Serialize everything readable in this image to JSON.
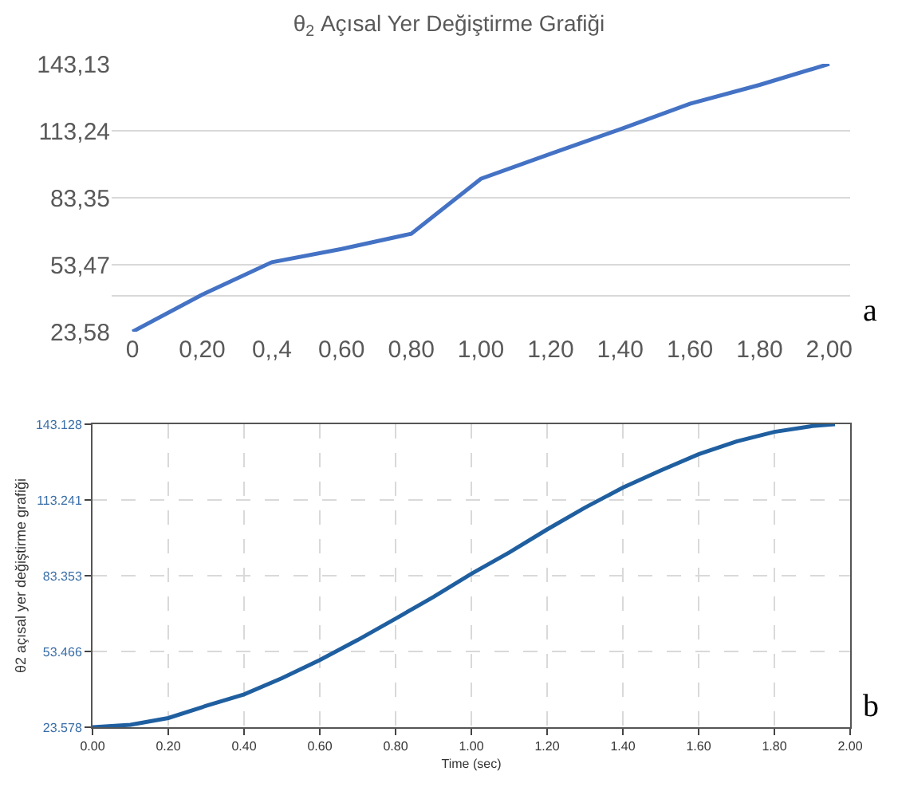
{
  "chart_data": [
    {
      "type": "line",
      "title": "θ$_{2}$ Açısal Yer Değiştirme Grafiği",
      "categories": [
        "0",
        "0,20",
        "0,,4",
        "0,60",
        "0,80",
        "1,00",
        "1,20",
        "1,40",
        "1,60",
        "1,80",
        "2,00"
      ],
      "series": [
        {
          "color": "#4472c4",
          "values": [
            23.6,
            40.1,
            54.6,
            60.5,
            67.3,
            91.8,
            103.0,
            113.9,
            125.3,
            133.7,
            143.1
          ]
        }
      ],
      "ylim": [
        23.58,
        143.13
      ],
      "yticks": [
        {
          "value": 23.58,
          "label": "23,58"
        },
        {
          "value": 39.6,
          "label": null
        },
        {
          "value": 53.47,
          "label": "53,47"
        },
        {
          "value": 83.35,
          "label": "83,35"
        },
        {
          "value": 113.24,
          "label": "113,24"
        },
        {
          "value": 143.13,
          "label": "143,13"
        }
      ],
      "grid": "y",
      "marker": "none",
      "line_style": "solid",
      "annotations": [
        "a"
      ]
    },
    {
      "type": "line",
      "xlabel": "Time (sec)",
      "ylabel": "θ2 açısal yer değiştirme grafiği",
      "series": [
        {
          "color": "#1f5fa0",
          "x": [
            0,
            0.1,
            0.2,
            0.3,
            0.4,
            0.5,
            0.6,
            0.7,
            0.8,
            0.9,
            1.0,
            1.1,
            1.2,
            1.3,
            1.4,
            1.5,
            1.6,
            1.7,
            1.8,
            1.9,
            1.96
          ],
          "values": [
            23.6,
            24.5,
            27.2,
            32,
            36.5,
            42.9,
            50.1,
            58.0,
            66.4,
            75.0,
            84.1,
            92.5,
            101.6,
            110.2,
            118.1,
            124.9,
            131.3,
            136.3,
            140.1,
            142.4,
            143.1
          ]
        }
      ],
      "xlim": [
        0,
        2
      ],
      "xticks": [
        {
          "value": 0,
          "label": "0.00"
        },
        {
          "value": 0.2,
          "label": "0.20"
        },
        {
          "value": 0.4,
          "label": "0.40"
        },
        {
          "value": 0.6,
          "label": "0.60"
        },
        {
          "value": 0.8,
          "label": "0.80"
        },
        {
          "value": 1,
          "label": "1.00"
        },
        {
          "value": 1.2,
          "label": "1.20"
        },
        {
          "value": 1.4,
          "label": "1.40"
        },
        {
          "value": 1.6,
          "label": "1.60"
        },
        {
          "value": 1.8,
          "label": "1.80"
        },
        {
          "value": 2,
          "label": "2.00"
        }
      ],
      "ylim": [
        23.578,
        143.128
      ],
      "yticks": [
        23.578,
        53.466,
        83.353,
        113.241,
        143.128
      ],
      "grid": true,
      "marker": "none",
      "line_style": "solid",
      "annotations": [
        "b"
      ]
    }
  ]
}
